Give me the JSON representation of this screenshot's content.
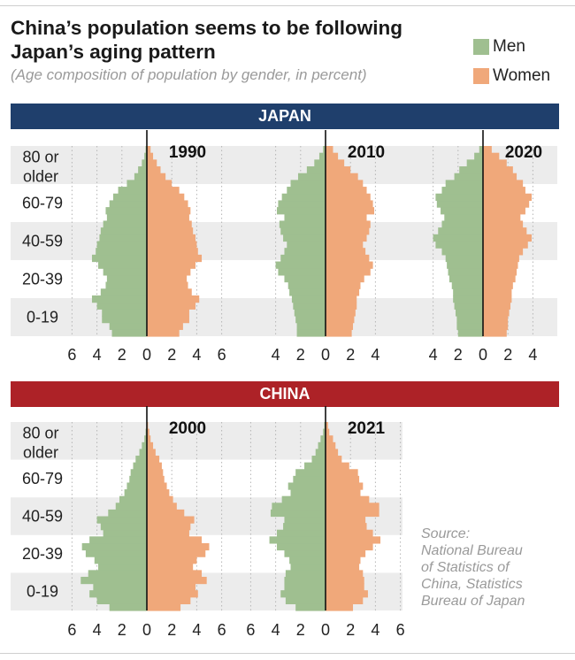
{
  "title": "China’s population seems to be following Japan’s aging pattern",
  "subtitle": "(Age composition of population by gender, in percent)",
  "legend": [
    {
      "label": "Men",
      "color": "#9fbf90"
    },
    {
      "label": "Women",
      "color": "#f0a87a"
    }
  ],
  "colors": {
    "japan_banner": "#1f3f6c",
    "china_banner": "#ad2227",
    "band": "#ececec",
    "axis": "#111111",
    "grid": "#b5b5b5"
  },
  "source_lines": [
    "Source:",
    "National Bureau",
    "of Statistics of",
    "China, Statistics",
    "Bureau of Japan"
  ],
  "chart_data": [
    {
      "type": "bar",
      "orientation": "horizontal",
      "subtype": "population-pyramid",
      "section": "JAPAN",
      "title": "1990",
      "age_groups": [
        "0-19",
        "20-39",
        "40-59",
        "60-79",
        "80 or older"
      ],
      "tick_labels": [
        "6",
        "4",
        "2",
        "0",
        "2",
        "4",
        "6"
      ],
      "xlim": [
        -6,
        6
      ],
      "series": [
        {
          "name": "Men",
          "values": [
            2.8,
            3.0,
            3.6,
            3.6,
            4.0,
            4.4,
            3.7,
            3.3,
            3.2,
            3.5,
            3.9,
            4.4,
            4.1,
            4.0,
            3.8,
            3.7,
            3.5,
            3.2,
            3.3,
            3.0,
            2.7,
            2.3,
            1.6,
            1.0,
            0.7,
            0.4,
            0.2,
            0.1
          ]
        },
        {
          "name": "Women",
          "values": [
            2.6,
            2.9,
            3.4,
            3.4,
            3.9,
            4.2,
            3.6,
            3.3,
            3.2,
            3.5,
            3.9,
            4.4,
            4.1,
            4.0,
            3.9,
            3.7,
            3.6,
            3.4,
            3.5,
            3.3,
            3.0,
            2.6,
            2.0,
            1.5,
            1.1,
            0.8,
            0.5,
            0.3
          ]
        }
      ]
    },
    {
      "type": "bar",
      "orientation": "horizontal",
      "subtype": "population-pyramid",
      "section": "JAPAN",
      "title": "2010",
      "age_groups": [
        "0-19",
        "20-39",
        "40-59",
        "60-79",
        "80 or older"
      ],
      "tick_labels": [
        "4",
        "2",
        "0",
        "2",
        "4"
      ],
      "xlim": [
        -4,
        4
      ],
      "series": [
        {
          "name": "Men",
          "values": [
            2.3,
            2.3,
            2.4,
            2.5,
            2.6,
            2.7,
            2.9,
            3.0,
            3.3,
            3.8,
            4.0,
            3.6,
            3.3,
            3.1,
            3.4,
            3.6,
            3.7,
            3.3,
            3.9,
            3.8,
            3.5,
            3.1,
            2.8,
            2.2,
            1.5,
            0.9,
            0.5,
            0.2
          ]
        },
        {
          "name": "Women",
          "values": [
            2.1,
            2.2,
            2.3,
            2.4,
            2.5,
            2.5,
            2.7,
            2.8,
            3.1,
            3.6,
            3.8,
            3.5,
            3.2,
            3.0,
            3.3,
            3.5,
            3.6,
            3.3,
            3.9,
            3.8,
            3.6,
            3.3,
            3.0,
            2.6,
            2.0,
            1.5,
            1.0,
            0.6
          ]
        }
      ]
    },
    {
      "type": "bar",
      "orientation": "horizontal",
      "subtype": "population-pyramid",
      "section": "JAPAN",
      "title": "2020",
      "age_groups": [
        "0-19",
        "20-39",
        "40-59",
        "60-79",
        "80 or older"
      ],
      "tick_labels": [
        "4",
        "2",
        "0",
        "2",
        "4"
      ],
      "xlim": [
        -4,
        4
      ],
      "series": [
        {
          "name": "Men",
          "values": [
            2.0,
            2.1,
            2.1,
            2.2,
            2.3,
            2.4,
            2.4,
            2.5,
            2.7,
            2.8,
            2.9,
            3.0,
            3.3,
            3.8,
            4.0,
            3.6,
            3.3,
            3.1,
            3.4,
            3.7,
            3.8,
            3.3,
            3.0,
            2.3,
            1.9,
            1.3,
            0.7,
            0.3
          ]
        },
        {
          "name": "Women",
          "values": [
            1.9,
            2.0,
            2.0,
            2.1,
            2.2,
            2.3,
            2.3,
            2.4,
            2.6,
            2.7,
            2.8,
            2.9,
            3.2,
            3.6,
            3.9,
            3.5,
            3.2,
            3.0,
            3.4,
            3.7,
            3.9,
            3.4,
            3.2,
            2.7,
            2.4,
            1.9,
            1.3,
            0.7
          ]
        }
      ]
    },
    {
      "type": "bar",
      "orientation": "horizontal",
      "subtype": "population-pyramid",
      "section": "CHINA",
      "title": "2000",
      "age_groups": [
        "0-19",
        "20-39",
        "40-59",
        "60-79",
        "80 or older"
      ],
      "tick_labels": [
        "6",
        "4",
        "2",
        "0",
        "2",
        "4",
        "6"
      ],
      "xlim": [
        -6,
        6
      ],
      "series": [
        {
          "name": "Men",
          "values": [
            3.0,
            4.0,
            4.6,
            4.3,
            5.3,
            4.7,
            3.9,
            4.2,
            4.9,
            5.2,
            4.6,
            3.5,
            3.7,
            4.0,
            3.1,
            2.5,
            2.2,
            1.8,
            1.6,
            1.4,
            1.3,
            1.1,
            0.9,
            0.6,
            0.4,
            0.2,
            0.1,
            0.0
          ]
        },
        {
          "name": "Women",
          "values": [
            2.7,
            3.5,
            4.1,
            3.9,
            4.8,
            4.4,
            3.7,
            4.0,
            4.7,
            5.0,
            4.4,
            3.4,
            3.5,
            3.8,
            3.0,
            2.4,
            2.1,
            1.8,
            1.6,
            1.4,
            1.3,
            1.2,
            1.0,
            0.7,
            0.5,
            0.3,
            0.2,
            0.1
          ]
        }
      ]
    },
    {
      "type": "bar",
      "orientation": "horizontal",
      "subtype": "population-pyramid",
      "section": "CHINA",
      "title": "2021",
      "age_groups": [
        "0-19",
        "20-39",
        "40-59",
        "60-79",
        "80 or older"
      ],
      "tick_labels": [
        "6",
        "4",
        "2",
        "0",
        "2",
        "4",
        "6"
      ],
      "xlim": [
        -6,
        6
      ],
      "series": [
        {
          "name": "Men",
          "values": [
            2.4,
            3.2,
            3.6,
            3.3,
            3.3,
            3.2,
            2.8,
            2.9,
            3.3,
            3.9,
            4.5,
            3.9,
            3.4,
            3.3,
            4.4,
            4.3,
            3.5,
            2.8,
            3.0,
            2.6,
            2.4,
            1.7,
            1.1,
            0.8,
            0.6,
            0.4,
            0.2,
            0.1
          ]
        },
        {
          "name": "Women",
          "values": [
            2.2,
            3.0,
            3.4,
            3.1,
            3.1,
            3.0,
            2.7,
            2.8,
            3.2,
            3.8,
            4.4,
            3.8,
            3.3,
            3.2,
            4.3,
            4.3,
            3.5,
            2.8,
            3.0,
            2.7,
            2.6,
            1.9,
            1.3,
            1.0,
            0.8,
            0.6,
            0.3,
            0.2
          ]
        }
      ]
    }
  ]
}
